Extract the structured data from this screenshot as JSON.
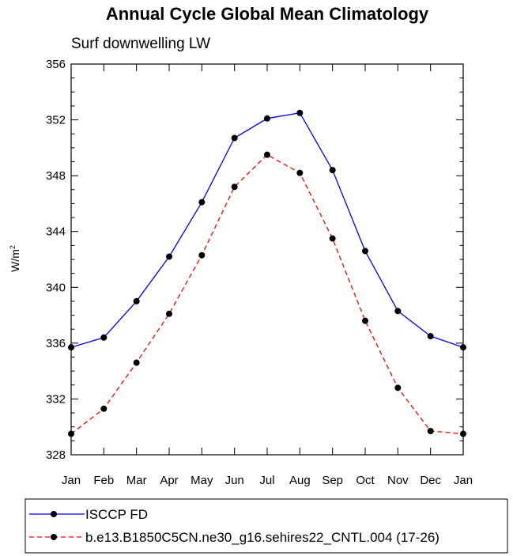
{
  "chart_data": {
    "type": "line",
    "title": "Annual Cycle Global Mean Climatology",
    "subtitle": "Surf downwelling LW",
    "ylabel_base": "W/m",
    "ylabel_sup": "2",
    "categories": [
      "Jan",
      "Feb",
      "Mar",
      "Apr",
      "May",
      "Jun",
      "Jul",
      "Aug",
      "Sep",
      "Oct",
      "Nov",
      "Dec",
      "Jan"
    ],
    "ylim": [
      328,
      356
    ],
    "yticks": [
      "328",
      "332",
      "336",
      "340",
      "344",
      "348",
      "352",
      "356"
    ],
    "grid": false,
    "legend_position": "bottom",
    "series": [
      {
        "name": "ISCCP FD",
        "color": "#0000ff",
        "dash": "solid",
        "values": [
          335.7,
          336.4,
          339.0,
          342.2,
          346.1,
          350.7,
          352.1,
          352.5,
          348.4,
          342.6,
          338.3,
          336.5,
          335.7
        ]
      },
      {
        "name": "b.e13.B1850C5CN.ne30_g16.sehires22_CNTL.004 (17-26)",
        "color": "#ff0000",
        "dash": "dashed",
        "values": [
          329.5,
          331.3,
          334.6,
          338.1,
          342.3,
          347.2,
          349.5,
          348.2,
          343.5,
          337.6,
          332.8,
          329.7,
          329.5
        ]
      }
    ]
  }
}
